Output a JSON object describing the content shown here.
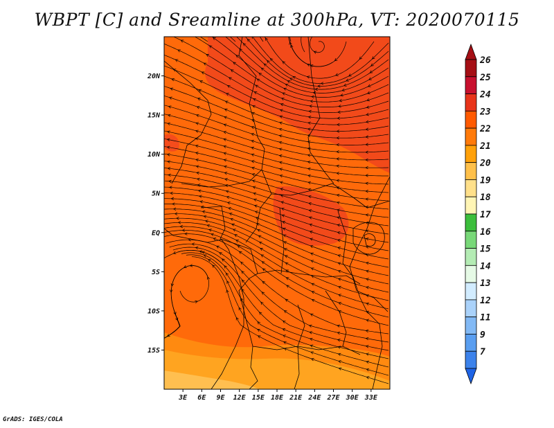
{
  "title": "WBPT [C] and Sreamline at 300hPa, VT: 2020070115",
  "footer": "GrADS: IGES/COLA",
  "map": {
    "lon_range": [
      0,
      36
    ],
    "lat_range": [
      -20,
      25
    ],
    "background_color": "#ff6a0a",
    "lat_ticks": [
      {
        "value": 20,
        "label": "20N"
      },
      {
        "value": 15,
        "label": "15N"
      },
      {
        "value": 10,
        "label": "10N"
      },
      {
        "value": 5,
        "label": "5N"
      },
      {
        "value": 0,
        "label": "EQ"
      },
      {
        "value": -5,
        "label": "5S"
      },
      {
        "value": -10,
        "label": "10S"
      },
      {
        "value": -15,
        "label": "15S"
      }
    ],
    "lon_ticks": [
      {
        "value": 3,
        "label": "3E"
      },
      {
        "value": 6,
        "label": "6E"
      },
      {
        "value": 9,
        "label": "9E"
      },
      {
        "value": 12,
        "label": "12E"
      },
      {
        "value": 15,
        "label": "15E"
      },
      {
        "value": 18,
        "label": "18E"
      },
      {
        "value": 21,
        "label": "21E"
      },
      {
        "value": 24,
        "label": "24E"
      },
      {
        "value": 27,
        "label": "27E"
      },
      {
        "value": 30,
        "label": "30E"
      },
      {
        "value": 33,
        "label": "33E"
      }
    ]
  },
  "colorbar": {
    "levels": [
      {
        "label": "26",
        "color": "#a50f15"
      },
      {
        "label": "25",
        "color": "#c8102e"
      },
      {
        "label": "24",
        "color": "#e8341a"
      },
      {
        "label": "23",
        "color": "#ff5a00"
      },
      {
        "label": "22",
        "color": "#ff7a0a"
      },
      {
        "label": "21",
        "color": "#ffa10a"
      },
      {
        "label": "20",
        "color": "#ffc04a"
      },
      {
        "label": "19",
        "color": "#ffe08a"
      },
      {
        "label": "18",
        "color": "#fff5b5"
      },
      {
        "label": "17",
        "color": "#3cbe3c"
      },
      {
        "label": "16",
        "color": "#78d878"
      },
      {
        "label": "15",
        "color": "#b4ecb4"
      },
      {
        "label": "14",
        "color": "#e6fae6"
      },
      {
        "label": "13",
        "color": "#d2ecff"
      },
      {
        "label": "12",
        "color": "#aad2fa"
      },
      {
        "label": "11",
        "color": "#82b9f5"
      },
      {
        "label": "9",
        "color": "#5a9ef0"
      },
      {
        "label": "7",
        "color": "#3c82eb"
      }
    ],
    "below_color": "#1e64e6"
  }
}
